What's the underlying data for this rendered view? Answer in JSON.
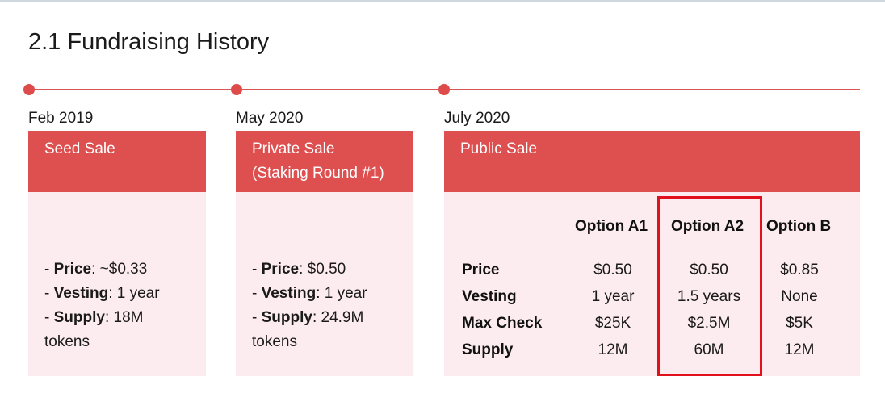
{
  "title": "2.1 Fundraising History",
  "rounds": [
    {
      "date": "Feb 2019",
      "name": "Seed Sale",
      "price_label": "Price",
      "price_value": ": ~$0.33",
      "vesting_label": "Vesting",
      "vesting_value": ": 1 year",
      "supply_label": "Supply",
      "supply_value": ": 18M",
      "supply_unit": "tokens"
    },
    {
      "date": "May 2020",
      "name": "Private Sale",
      "name_line2": "(Staking Round #1)",
      "price_label": "Price",
      "price_value": ": $0.50",
      "vesting_label": "Vesting",
      "vesting_value": ": 1 year",
      "supply_label": "Supply",
      "supply_value": ": 24.9M",
      "supply_unit": "tokens"
    },
    {
      "date": "July 2020",
      "name": "Public Sale"
    }
  ],
  "public_sale_table": {
    "options": [
      "Option A1",
      "Option A2",
      "Option B"
    ],
    "rows": [
      {
        "label": "Price",
        "values": [
          "$0.50",
          "$0.50",
          "$0.85"
        ]
      },
      {
        "label": "Vesting",
        "values": [
          "1 year",
          "1.5 years",
          "None"
        ]
      },
      {
        "label": "Max Check",
        "values": [
          "$25K",
          "$2.5M",
          "$5K"
        ]
      },
      {
        "label": "Supply",
        "values": [
          "12M",
          "60M",
          "12M"
        ]
      }
    ],
    "highlighted_option": "Option A2"
  },
  "colors": {
    "accent": "#de4f4f",
    "card_bg": "#fcecef",
    "highlight_border": "#e0101c"
  }
}
